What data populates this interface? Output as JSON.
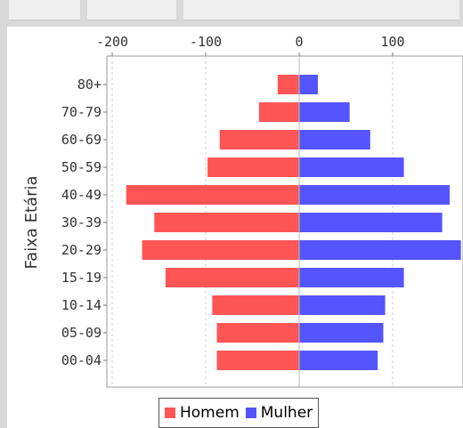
{
  "chart_data": {
    "type": "bar",
    "orientation": "horizontal",
    "title": "",
    "xlabel": "",
    "ylabel": "Faixa Etária",
    "categories": [
      "80+",
      "70-79",
      "60-69",
      "50-59",
      "40-49",
      "30-39",
      "20-29",
      "15-19",
      "10-14",
      "05-09",
      "00-04"
    ],
    "series": [
      {
        "name": "Homem",
        "color": "#ff5555",
        "values": [
          -23,
          -43,
          -85,
          -98,
          -185,
          -155,
          -168,
          -143,
          -93,
          -88,
          -88
        ]
      },
      {
        "name": "Mulher",
        "color": "#5555ff",
        "values": [
          20,
          54,
          76,
          112,
          161,
          153,
          173,
          112,
          92,
          90,
          84
        ]
      }
    ],
    "xlim": [
      -205,
      170
    ],
    "xticks": [
      -200,
      -100,
      0,
      100
    ],
    "xtick_labels": [
      "-200",
      "-100",
      "0",
      "100"
    ],
    "grid": true,
    "legend_position": "bottom"
  }
}
